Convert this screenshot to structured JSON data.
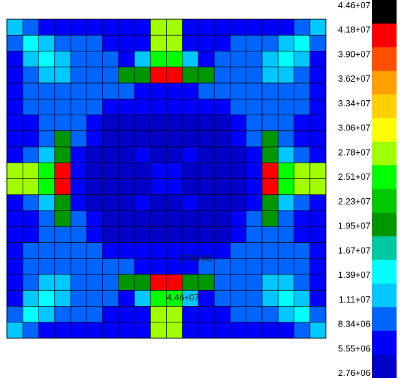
{
  "chart_data": {
    "type": "heatmap",
    "title": "",
    "xlabel": "",
    "ylabel": "",
    "grid": true,
    "legend_placement": "right",
    "colorbar": {
      "labels": [
        "4.46+07",
        "4.18+07",
        "3.90+07",
        "3.62+07",
        "3.34+07",
        "3.06+07",
        "2.78+07",
        "2.51+07",
        "2.23+07",
        "1.95+07",
        "1.67+07",
        "1.39+07",
        "1.11+07",
        "8.34+06",
        "5.55+06",
        "2.76+06"
      ],
      "colors": [
        "#000000",
        "#ff0000",
        "#ff5000",
        "#ffa000",
        "#ffd000",
        "#ffff00",
        "#a0ff00",
        "#00ff00",
        "#00c800",
        "#009600",
        "#00c8a0",
        "#00ffff",
        "#00c8ff",
        "#0064ff",
        "#0000ff",
        "#0000c8"
      ]
    },
    "annotations": [
      {
        "text": "2.76+06",
        "location": "near center, lower right"
      },
      {
        "text": "4.46+07",
        "location": "bottom edge center"
      }
    ],
    "grid_size": [
      20,
      20
    ],
    "values": [
      [
        12,
        13,
        14,
        14,
        14,
        14,
        14,
        14,
        14,
        6,
        6,
        14,
        14,
        14,
        14,
        14,
        14,
        14,
        13,
        12
      ],
      [
        13,
        11,
        12,
        13,
        13,
        13,
        14,
        14,
        14,
        6,
        6,
        14,
        14,
        14,
        13,
        13,
        13,
        12,
        11,
        13
      ],
      [
        14,
        12,
        11,
        12,
        13,
        13,
        13,
        14,
        12,
        7,
        7,
        12,
        14,
        13,
        13,
        13,
        12,
        11,
        12,
        14
      ],
      [
        14,
        13,
        12,
        12,
        13,
        13,
        13,
        9,
        9,
        1,
        1,
        9,
        9,
        13,
        13,
        13,
        12,
        12,
        13,
        14
      ],
      [
        14,
        13,
        13,
        13,
        13,
        13,
        13,
        13,
        14,
        14,
        14,
        14,
        13,
        13,
        13,
        13,
        13,
        13,
        13,
        14
      ],
      [
        14,
        13,
        13,
        13,
        13,
        13,
        14,
        14,
        14,
        14,
        14,
        14,
        14,
        14,
        13,
        13,
        13,
        13,
        13,
        14
      ],
      [
        14,
        14,
        13,
        13,
        13,
        14,
        15,
        15,
        15,
        15,
        15,
        15,
        15,
        15,
        14,
        13,
        13,
        13,
        14,
        14
      ],
      [
        14,
        14,
        13,
        9,
        13,
        14,
        15,
        15,
        15,
        15,
        15,
        15,
        15,
        15,
        14,
        13,
        9,
        13,
        14,
        14
      ],
      [
        14,
        13,
        12,
        9,
        14,
        15,
        15,
        15,
        14,
        15,
        15,
        14,
        15,
        15,
        15,
        14,
        9,
        12,
        13,
        14
      ],
      [
        6,
        6,
        7,
        1,
        14,
        15,
        15,
        15,
        15,
        14,
        14,
        15,
        15,
        15,
        15,
        14,
        1,
        7,
        6,
        6
      ],
      [
        6,
        6,
        7,
        1,
        14,
        15,
        15,
        15,
        15,
        14,
        14,
        15,
        15,
        15,
        15,
        14,
        1,
        7,
        6,
        6
      ],
      [
        14,
        13,
        12,
        9,
        14,
        15,
        15,
        15,
        14,
        15,
        15,
        14,
        15,
        15,
        15,
        14,
        9,
        12,
        13,
        14
      ],
      [
        14,
        14,
        13,
        9,
        13,
        14,
        15,
        15,
        15,
        15,
        15,
        15,
        15,
        15,
        14,
        13,
        9,
        13,
        14,
        14
      ],
      [
        14,
        14,
        13,
        13,
        13,
        14,
        15,
        15,
        15,
        15,
        15,
        15,
        15,
        15,
        14,
        13,
        13,
        13,
        14,
        14
      ],
      [
        14,
        13,
        13,
        13,
        13,
        13,
        14,
        14,
        14,
        14,
        14,
        14,
        14,
        14,
        13,
        13,
        13,
        13,
        13,
        14
      ],
      [
        14,
        13,
        13,
        13,
        13,
        13,
        13,
        13,
        14,
        14,
        14,
        14,
        13,
        13,
        13,
        13,
        13,
        13,
        13,
        14
      ],
      [
        14,
        13,
        12,
        12,
        13,
        13,
        13,
        9,
        9,
        1,
        1,
        9,
        9,
        13,
        13,
        13,
        12,
        12,
        13,
        14
      ],
      [
        14,
        12,
        11,
        12,
        13,
        13,
        13,
        14,
        12,
        7,
        7,
        12,
        14,
        13,
        13,
        13,
        12,
        11,
        12,
        14
      ],
      [
        13,
        11,
        12,
        13,
        13,
        13,
        14,
        14,
        14,
        6,
        6,
        14,
        14,
        14,
        13,
        13,
        13,
        12,
        11,
        13
      ],
      [
        12,
        13,
        14,
        14,
        14,
        14,
        14,
        14,
        14,
        6,
        6,
        14,
        14,
        14,
        14,
        14,
        14,
        14,
        13,
        12
      ]
    ]
  }
}
